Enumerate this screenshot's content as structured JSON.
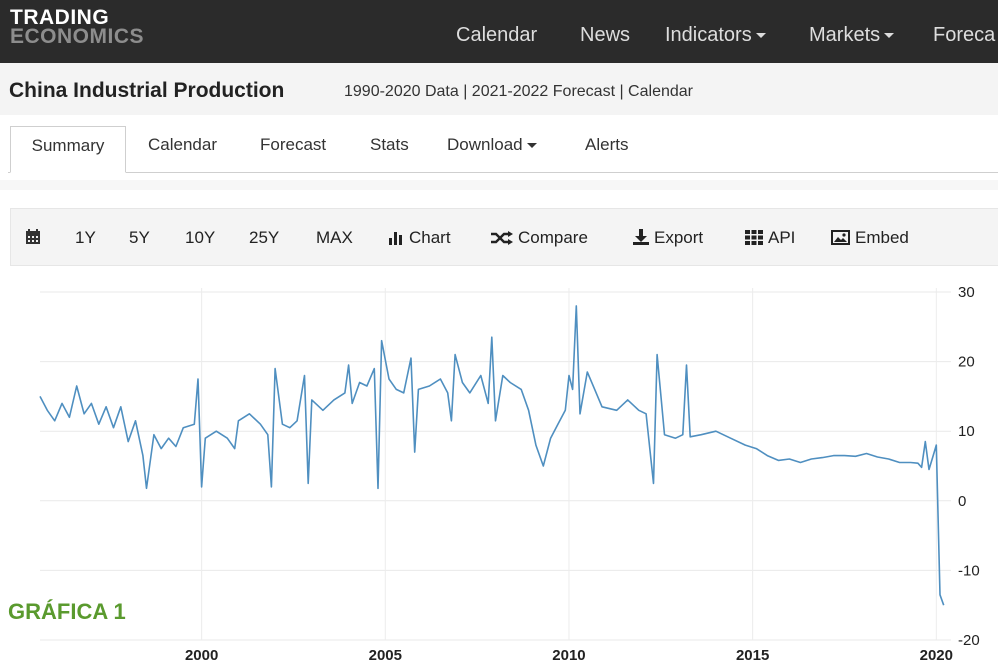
{
  "nav": {
    "logo_line1": "TRADING",
    "logo_line2": "ECONOMICS",
    "items": [
      {
        "label": "Calendar",
        "dropdown": false
      },
      {
        "label": "News",
        "dropdown": false
      },
      {
        "label": "Indicators",
        "dropdown": true
      },
      {
        "label": "Markets",
        "dropdown": true
      },
      {
        "label": "Foreca",
        "dropdown": false
      }
    ]
  },
  "header": {
    "title": "China Industrial Production",
    "subtitle": "1990-2020 Data | 2021-2022 Forecast | Calendar"
  },
  "tabs": [
    {
      "label": "Summary",
      "active": true
    },
    {
      "label": "Calendar",
      "active": false
    },
    {
      "label": "Forecast",
      "active": false
    },
    {
      "label": "Stats",
      "active": false
    },
    {
      "label": "Download",
      "active": false,
      "dropdown": true
    },
    {
      "label": "Alerts",
      "active": false
    }
  ],
  "toolbar": {
    "calendar_icon": "calendar-icon",
    "ranges": [
      "1Y",
      "5Y",
      "10Y",
      "25Y",
      "MAX"
    ],
    "actions": [
      {
        "label": "Chart",
        "icon": "bar-chart-icon"
      },
      {
        "label": "Compare",
        "icon": "shuffle-icon"
      },
      {
        "label": "Export",
        "icon": "download-icon"
      },
      {
        "label": "API",
        "icon": "grid-icon"
      },
      {
        "label": "Embed",
        "icon": "image-icon"
      }
    ]
  },
  "caption": "GRÁFICA 1",
  "colors": {
    "line": "#4f8fc0",
    "caption": "#5a9a2e",
    "nav_bg": "#2b2b2b"
  },
  "chart_data": {
    "type": "line",
    "title": "",
    "xlabel": "",
    "ylabel": "",
    "x_ticks": [
      "2000",
      "2005",
      "2010",
      "2015",
      "2020"
    ],
    "y_ticks": [
      30,
      20,
      10,
      0,
      -10,
      -20
    ],
    "xlim": [
      1995.6,
      2020.4
    ],
    "ylim": [
      -20,
      30
    ],
    "y_axis_side": "right",
    "grid": true,
    "series": [
      {
        "values": [
          [
            1995.6,
            15.0
          ],
          [
            1995.8,
            13.0
          ],
          [
            1996.0,
            11.5
          ],
          [
            1996.2,
            14.0
          ],
          [
            1996.4,
            12.0
          ],
          [
            1996.6,
            16.5
          ],
          [
            1996.8,
            12.5
          ],
          [
            1997.0,
            14.0
          ],
          [
            1997.2,
            11.0
          ],
          [
            1997.4,
            13.5
          ],
          [
            1997.6,
            10.5
          ],
          [
            1997.8,
            13.5
          ],
          [
            1998.0,
            8.5
          ],
          [
            1998.2,
            11.5
          ],
          [
            1998.4,
            6.5
          ],
          [
            1998.5,
            1.8
          ],
          [
            1998.7,
            9.5
          ],
          [
            1998.9,
            7.5
          ],
          [
            1999.1,
            9.0
          ],
          [
            1999.3,
            7.8
          ],
          [
            1999.5,
            10.5
          ],
          [
            1999.8,
            11.0
          ],
          [
            1999.9,
            17.5
          ],
          [
            2000.0,
            2.0
          ],
          [
            2000.1,
            9.0
          ],
          [
            2000.4,
            10.0
          ],
          [
            2000.7,
            9.0
          ],
          [
            2000.9,
            7.5
          ],
          [
            2001.0,
            11.5
          ],
          [
            2001.3,
            12.5
          ],
          [
            2001.6,
            11.0
          ],
          [
            2001.8,
            9.5
          ],
          [
            2001.9,
            2.0
          ],
          [
            2002.0,
            19.0
          ],
          [
            2002.2,
            11.0
          ],
          [
            2002.4,
            10.5
          ],
          [
            2002.6,
            11.5
          ],
          [
            2002.8,
            18.0
          ],
          [
            2002.9,
            2.5
          ],
          [
            2003.0,
            14.5
          ],
          [
            2003.3,
            13.0
          ],
          [
            2003.6,
            14.5
          ],
          [
            2003.9,
            15.5
          ],
          [
            2004.0,
            19.5
          ],
          [
            2004.1,
            14.0
          ],
          [
            2004.3,
            17.0
          ],
          [
            2004.5,
            16.5
          ],
          [
            2004.7,
            19.0
          ],
          [
            2004.8,
            1.8
          ],
          [
            2004.9,
            23.0
          ],
          [
            2005.1,
            17.5
          ],
          [
            2005.3,
            16.0
          ],
          [
            2005.5,
            15.5
          ],
          [
            2005.7,
            20.5
          ],
          [
            2005.8,
            7.0
          ],
          [
            2005.9,
            16.0
          ],
          [
            2006.2,
            16.5
          ],
          [
            2006.5,
            17.5
          ],
          [
            2006.7,
            15.5
          ],
          [
            2006.8,
            11.5
          ],
          [
            2006.9,
            21.0
          ],
          [
            2007.1,
            17.0
          ],
          [
            2007.3,
            15.5
          ],
          [
            2007.6,
            18.0
          ],
          [
            2007.8,
            14.0
          ],
          [
            2007.9,
            23.5
          ],
          [
            2008.0,
            11.5
          ],
          [
            2008.2,
            18.0
          ],
          [
            2008.4,
            17.0
          ],
          [
            2008.7,
            16.0
          ],
          [
            2008.9,
            13.0
          ],
          [
            2009.1,
            8.0
          ],
          [
            2009.3,
            5.0
          ],
          [
            2009.5,
            9.0
          ],
          [
            2009.7,
            11.0
          ],
          [
            2009.9,
            13.0
          ],
          [
            2010.0,
            18.0
          ],
          [
            2010.1,
            16.0
          ],
          [
            2010.2,
            28.0
          ],
          [
            2010.3,
            12.5
          ],
          [
            2010.5,
            18.5
          ],
          [
            2010.7,
            16.0
          ],
          [
            2010.9,
            13.5
          ],
          [
            2011.3,
            13.0
          ],
          [
            2011.6,
            14.5
          ],
          [
            2011.9,
            13.0
          ],
          [
            2012.1,
            12.5
          ],
          [
            2012.3,
            2.5
          ],
          [
            2012.4,
            21.0
          ],
          [
            2012.6,
            9.5
          ],
          [
            2012.9,
            9.0
          ],
          [
            2013.1,
            9.5
          ],
          [
            2013.2,
            19.5
          ],
          [
            2013.3,
            9.2
          ],
          [
            2013.6,
            9.5
          ],
          [
            2014.0,
            10.0
          ],
          [
            2014.4,
            9.0
          ],
          [
            2014.8,
            8.0
          ],
          [
            2015.1,
            7.5
          ],
          [
            2015.4,
            6.5
          ],
          [
            2015.7,
            5.8
          ],
          [
            2016.0,
            6.0
          ],
          [
            2016.3,
            5.5
          ],
          [
            2016.6,
            6.0
          ],
          [
            2016.9,
            6.2
          ],
          [
            2017.2,
            6.5
          ],
          [
            2017.5,
            6.5
          ],
          [
            2017.8,
            6.4
          ],
          [
            2018.1,
            6.8
          ],
          [
            2018.4,
            6.3
          ],
          [
            2018.7,
            6.0
          ],
          [
            2019.0,
            5.5
          ],
          [
            2019.3,
            5.5
          ],
          [
            2019.5,
            5.4
          ],
          [
            2019.6,
            4.8
          ],
          [
            2019.7,
            8.5
          ],
          [
            2019.8,
            4.5
          ],
          [
            2019.9,
            6.2
          ],
          [
            2020.0,
            8.0
          ],
          [
            2020.1,
            -13.5
          ],
          [
            2020.2,
            -15.0
          ]
        ]
      }
    ]
  }
}
